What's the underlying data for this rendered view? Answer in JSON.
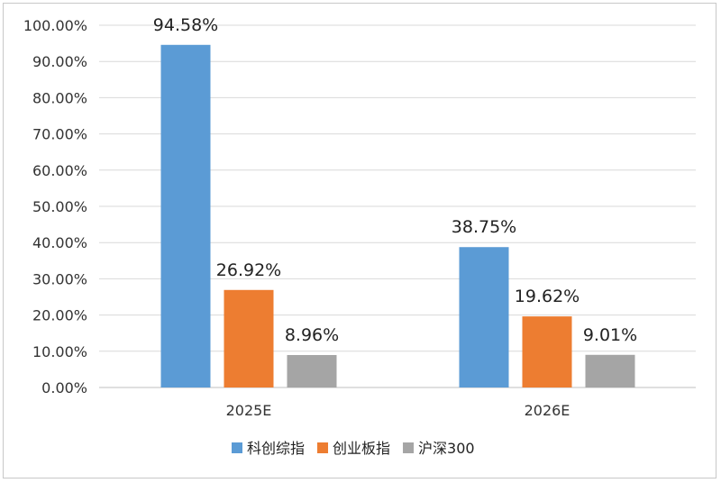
{
  "chart_data": {
    "type": "bar",
    "categories": [
      "2025E",
      "2026E"
    ],
    "series": [
      {
        "name": "科创综指",
        "values": [
          94.58,
          38.75
        ],
        "labels": [
          "94.58%",
          "38.75%"
        ],
        "color": "#5B9BD5"
      },
      {
        "name": "创业板指",
        "values": [
          26.92,
          19.62
        ],
        "labels": [
          "26.92%",
          "19.62%"
        ],
        "color": "#ED7D31"
      },
      {
        "name": "沪深300",
        "values": [
          8.96,
          9.01
        ],
        "labels": [
          "8.96%",
          "9.01%"
        ],
        "color": "#A5A5A5"
      }
    ],
    "ylim": [
      0,
      100
    ],
    "yticks": [
      "0.00%",
      "10.00%",
      "20.00%",
      "30.00%",
      "40.00%",
      "50.00%",
      "60.00%",
      "70.00%",
      "80.00%",
      "90.00%",
      "100.00%"
    ],
    "grid": true,
    "legend": "bottom"
  }
}
